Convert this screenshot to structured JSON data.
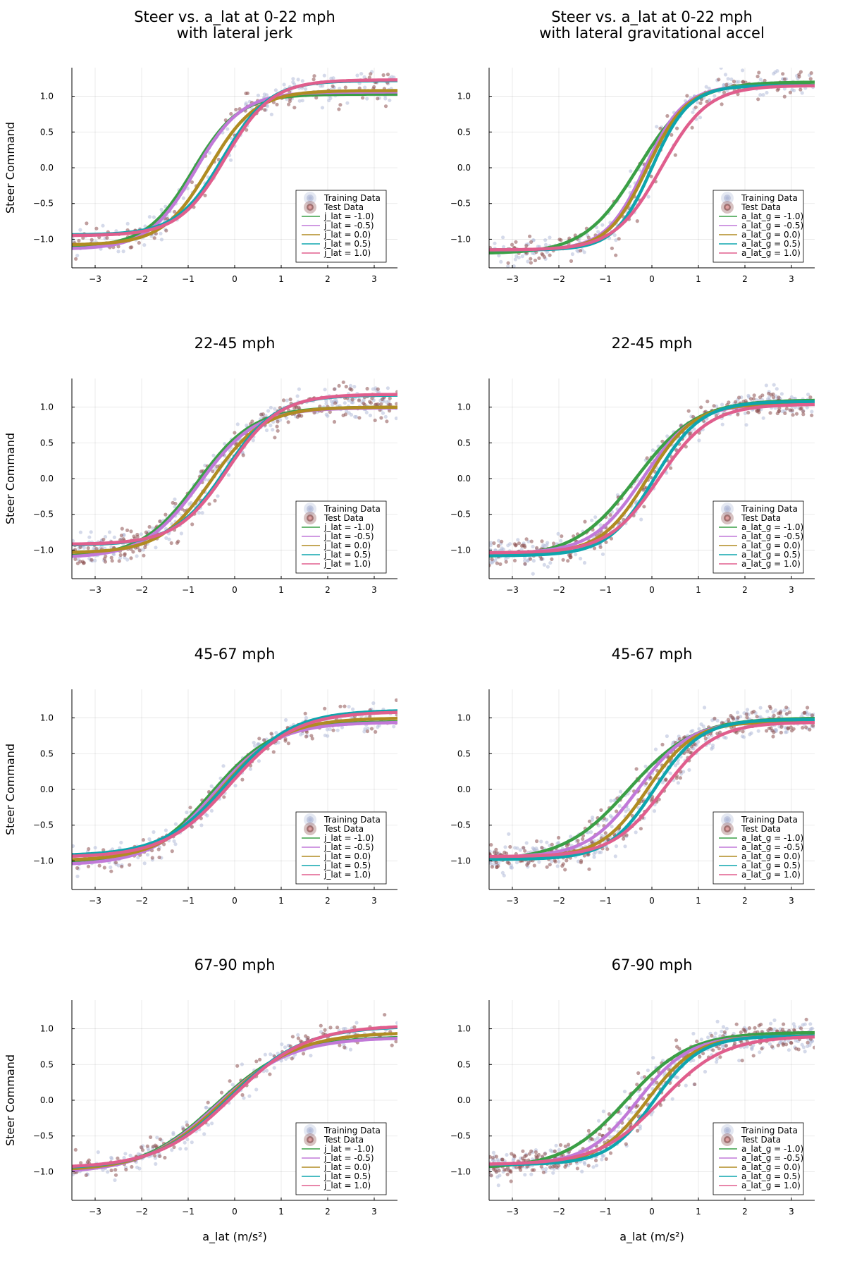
{
  "figure": {
    "ylabel": "Steer Command",
    "xlabel": "a_lat (m/s²)"
  },
  "chart_data": [
    {
      "type": "scatter",
      "title": "Steer vs. a_lat at 0-22 mph\nwith lateral jerk",
      "xlim": [
        -3.5,
        3.5
      ],
      "ylim": [
        -1.4,
        1.4
      ],
      "xticks": [
        -3,
        -2,
        -1,
        0,
        1,
        2,
        3
      ],
      "yticks": [
        -1.0,
        -0.5,
        0.0,
        0.5,
        1.0
      ],
      "ytick_labels": [
        "−1.0",
        "−0.5",
        "0.0",
        "0.5",
        "1.0"
      ],
      "xtick_labels": [
        "−3",
        "−2",
        "−1",
        "0",
        "1",
        "2",
        "3"
      ],
      "grid": true,
      "legend_position": "bottom-right",
      "scatter_series": [
        {
          "name": "Training Data",
          "color": "#b3bcd9",
          "approx_points": 180
        },
        {
          "name": "Test Data",
          "color": "#8c5050",
          "approx_points": 120
        }
      ],
      "series": [
        {
          "name": "j_lat = -1.0)",
          "color": "#3a9f46",
          "offset": -0.9,
          "amp": 1.07,
          "base": -0.04,
          "scale": 1.0
        },
        {
          "name": "j_lat = -0.5)",
          "color": "#c179d8",
          "offset": -0.85,
          "amp": 1.1,
          "base": -0.04,
          "scale": 1.0
        },
        {
          "name": "j_lat = 0.0)",
          "color": "#b08c22",
          "offset": -0.55,
          "amp": 1.08,
          "base": 0.0,
          "scale": 1.0
        },
        {
          "name": "j_lat = 0.5)",
          "color": "#0ea5ad",
          "offset": -0.25,
          "amp": 1.08,
          "base": 0.14,
          "scale": 1.0
        },
        {
          "name": "j_lat = 1.0)",
          "color": "#e05e8d",
          "offset": -0.2,
          "amp": 1.09,
          "base": 0.14,
          "scale": 1.0
        }
      ]
    },
    {
      "type": "scatter",
      "title": "Steer vs. a_lat at 0-22 mph\nwith lateral gravitational accel",
      "xlim": [
        -3.5,
        3.5
      ],
      "ylim": [
        -1.4,
        1.4
      ],
      "xticks": [
        -3,
        -2,
        -1,
        0,
        1,
        2,
        3
      ],
      "yticks": [
        -1.0,
        -0.5,
        0.0,
        0.5,
        1.0
      ],
      "ytick_labels": [
        "−1.0",
        "−0.5",
        "0.0",
        "0.5",
        "1.0"
      ],
      "xtick_labels": [
        "−3",
        "−2",
        "−1",
        "0",
        "1",
        "2",
        "3"
      ],
      "grid": true,
      "legend_position": "bottom-right",
      "scatter_series": [
        {
          "name": "Training Data",
          "color": "#b3bcd9",
          "approx_points": 180
        },
        {
          "name": "Test Data",
          "color": "#8c5050",
          "approx_points": 120
        }
      ],
      "series": [
        {
          "name": "a_lat_g = -1.0)",
          "color": "#3a9f46",
          "offset": -0.3,
          "amp": 1.2,
          "base": 0.0,
          "scale": 1.15
        },
        {
          "name": "a_lat_g = -0.5)",
          "color": "#c179d8",
          "offset": -0.15,
          "amp": 1.15,
          "base": 0.0,
          "scale": 0.85
        },
        {
          "name": "a_lat_g = 0.0)",
          "color": "#b08c22",
          "offset": -0.1,
          "amp": 1.15,
          "base": 0.0,
          "scale": 0.85
        },
        {
          "name": "a_lat_g = 0.5)",
          "color": "#0ea5ad",
          "offset": 0.0,
          "amp": 1.15,
          "base": 0.0,
          "scale": 0.8
        },
        {
          "name": "a_lat_g = 1.0)",
          "color": "#e05e8d",
          "offset": 0.2,
          "amp": 1.15,
          "base": 0.0,
          "scale": 1.0
        }
      ]
    },
    {
      "type": "scatter",
      "title": "22-45 mph",
      "xlim": [
        -3.5,
        3.5
      ],
      "ylim": [
        -1.4,
        1.4
      ],
      "xticks": [
        -3,
        -2,
        -1,
        0,
        1,
        2,
        3
      ],
      "yticks": [
        -1.0,
        -0.5,
        0.0,
        0.5,
        1.0
      ],
      "ytick_labels": [
        "−1.0",
        "−0.5",
        "0.0",
        "0.5",
        "1.0"
      ],
      "xtick_labels": [
        "−3",
        "−2",
        "−1",
        "0",
        "1",
        "2",
        "3"
      ],
      "grid": true,
      "legend_position": "bottom-right",
      "scatter_series": [
        {
          "name": "Training Data",
          "color": "#b3bcd9",
          "approx_points": 300
        },
        {
          "name": "Test Data",
          "color": "#8c5050",
          "approx_points": 220
        }
      ],
      "series": [
        {
          "name": "j_lat = -1.0)",
          "color": "#3a9f46",
          "offset": -0.8,
          "amp": 1.05,
          "base": -0.05,
          "scale": 1.2
        },
        {
          "name": "j_lat = -0.5)",
          "color": "#c179d8",
          "offset": -0.75,
          "amp": 1.05,
          "base": -0.06,
          "scale": 1.2
        },
        {
          "name": "j_lat = 0.0)",
          "color": "#b08c22",
          "offset": -0.5,
          "amp": 1.02,
          "base": -0.02,
          "scale": 1.1
        },
        {
          "name": "j_lat = 0.5)",
          "color": "#0ea5ad",
          "offset": -0.2,
          "amp": 1.05,
          "base": 0.12,
          "scale": 1.1
        },
        {
          "name": "j_lat = 1.0)",
          "color": "#e05e8d",
          "offset": -0.15,
          "amp": 1.05,
          "base": 0.13,
          "scale": 1.1
        }
      ]
    },
    {
      "type": "scatter",
      "title": "22-45 mph",
      "xlim": [
        -3.5,
        3.5
      ],
      "ylim": [
        -1.4,
        1.4
      ],
      "xticks": [
        -3,
        -2,
        -1,
        0,
        1,
        2,
        3
      ],
      "yticks": [
        -1.0,
        -0.5,
        0.0,
        0.5,
        1.0
      ],
      "ytick_labels": [
        "−1.0",
        "−0.5",
        "0.0",
        "0.5",
        "1.0"
      ],
      "xtick_labels": [
        "−3",
        "−2",
        "−1",
        "0",
        "1",
        "2",
        "3"
      ],
      "grid": true,
      "legend_position": "bottom-right",
      "scatter_series": [
        {
          "name": "Training Data",
          "color": "#b3bcd9",
          "approx_points": 300
        },
        {
          "name": "Test Data",
          "color": "#8c5050",
          "approx_points": 220
        }
      ],
      "series": [
        {
          "name": "a_lat_g = -1.0)",
          "color": "#3a9f46",
          "offset": -0.35,
          "amp": 1.1,
          "base": 0.0,
          "scale": 1.3
        },
        {
          "name": "a_lat_g = -0.5)",
          "color": "#c179d8",
          "offset": -0.2,
          "amp": 1.05,
          "base": 0.0,
          "scale": 1.1
        },
        {
          "name": "a_lat_g = 0.0)",
          "color": "#b08c22",
          "offset": -0.1,
          "amp": 1.05,
          "base": 0.0,
          "scale": 1.0
        },
        {
          "name": "a_lat_g = 0.5)",
          "color": "#0ea5ad",
          "offset": 0.05,
          "amp": 1.08,
          "base": 0.0,
          "scale": 1.0
        },
        {
          "name": "a_lat_g = 1.0)",
          "color": "#e05e8d",
          "offset": 0.15,
          "amp": 1.04,
          "base": 0.0,
          "scale": 1.1
        }
      ]
    },
    {
      "type": "scatter",
      "title": "45-67 mph",
      "xlim": [
        -3.5,
        3.5
      ],
      "ylim": [
        -1.4,
        1.4
      ],
      "xticks": [
        -3,
        -2,
        -1,
        0,
        1,
        2,
        3
      ],
      "yticks": [
        -1.0,
        -0.5,
        0.0,
        0.5,
        1.0
      ],
      "ytick_labels": [
        "−1.0",
        "−0.5",
        "0.0",
        "0.5",
        "1.0"
      ],
      "xtick_labels": [
        "−3",
        "−2",
        "−1",
        "0",
        "1",
        "2",
        "3"
      ],
      "grid": true,
      "legend_position": "bottom-right",
      "scatter_series": [
        {
          "name": "Training Data",
          "color": "#b3bcd9",
          "approx_points": 200
        },
        {
          "name": "Test Data",
          "color": "#8c5050",
          "approx_points": 140
        }
      ],
      "series": [
        {
          "name": "j_lat = -1.0)",
          "color": "#3a9f46",
          "offset": -0.5,
          "amp": 1.0,
          "base": -0.05,
          "scale": 1.35
        },
        {
          "name": "j_lat = -0.5)",
          "color": "#c179d8",
          "offset": -0.45,
          "amp": 1.0,
          "base": -0.06,
          "scale": 1.35
        },
        {
          "name": "j_lat = 0.0)",
          "color": "#b08c22",
          "offset": -0.3,
          "amp": 1.0,
          "base": 0.0,
          "scale": 1.35
        },
        {
          "name": "j_lat = 0.5)",
          "color": "#0ea5ad",
          "offset": -0.15,
          "amp": 1.02,
          "base": 0.09,
          "scale": 1.4
        },
        {
          "name": "j_lat = 1.0)",
          "color": "#e05e8d",
          "offset": -0.1,
          "amp": 1.02,
          "base": 0.07,
          "scale": 1.4
        }
      ]
    },
    {
      "type": "scatter",
      "title": "45-67 mph",
      "xlim": [
        -3.5,
        3.5
      ],
      "ylim": [
        -1.4,
        1.4
      ],
      "xticks": [
        -3,
        -2,
        -1,
        0,
        1,
        2,
        3
      ],
      "yticks": [
        -1.0,
        -0.5,
        0.0,
        0.5,
        1.0
      ],
      "ytick_labels": [
        "−1.0",
        "−0.5",
        "0.0",
        "0.5",
        "1.0"
      ],
      "xtick_labels": [
        "−3",
        "−2",
        "−1",
        "0",
        "1",
        "2",
        "3"
      ],
      "grid": true,
      "legend_position": "bottom-right",
      "scatter_series": [
        {
          "name": "Training Data",
          "color": "#b3bcd9",
          "approx_points": 360
        },
        {
          "name": "Test Data",
          "color": "#8c5050",
          "approx_points": 300
        }
      ],
      "series": [
        {
          "name": "a_lat_g = -1.0)",
          "color": "#3a9f46",
          "offset": -0.5,
          "amp": 1.0,
          "base": 0.0,
          "scale": 1.4
        },
        {
          "name": "a_lat_g = -0.5)",
          "color": "#c179d8",
          "offset": -0.3,
          "amp": 0.95,
          "base": 0.0,
          "scale": 1.1
        },
        {
          "name": "a_lat_g = 0.0)",
          "color": "#b08c22",
          "offset": -0.1,
          "amp": 0.95,
          "base": 0.0,
          "scale": 1.0
        },
        {
          "name": "a_lat_g = 0.5)",
          "color": "#0ea5ad",
          "offset": 0.05,
          "amp": 0.98,
          "base": 0.0,
          "scale": 1.0
        },
        {
          "name": "a_lat_g = 1.0)",
          "color": "#e05e8d",
          "offset": 0.25,
          "amp": 0.94,
          "base": 0.0,
          "scale": 1.1
        }
      ]
    },
    {
      "type": "scatter",
      "title": "67-90 mph",
      "xlim": [
        -3.5,
        3.5
      ],
      "ylim": [
        -1.4,
        1.4
      ],
      "xticks": [
        -3,
        -2,
        -1,
        0,
        1,
        2,
        3
      ],
      "yticks": [
        -1.0,
        -0.5,
        0.0,
        0.5,
        1.0
      ],
      "ytick_labels": [
        "−1.0",
        "−0.5",
        "0.0",
        "0.5",
        "1.0"
      ],
      "xtick_labels": [
        "−3",
        "−2",
        "−1",
        "0",
        "1",
        "2",
        "3"
      ],
      "grid": true,
      "legend_position": "bottom-right",
      "scatter_series": [
        {
          "name": "Training Data",
          "color": "#b3bcd9",
          "approx_points": 160
        },
        {
          "name": "Test Data",
          "color": "#8c5050",
          "approx_points": 120
        }
      ],
      "series": [
        {
          "name": "j_lat = -1.0)",
          "color": "#3a9f46",
          "offset": -0.4,
          "amp": 0.95,
          "base": -0.06,
          "scale": 1.6
        },
        {
          "name": "j_lat = -0.5)",
          "color": "#c179d8",
          "offset": -0.38,
          "amp": 0.95,
          "base": -0.07,
          "scale": 1.6
        },
        {
          "name": "j_lat = 0.0)",
          "color": "#b08c22",
          "offset": -0.25,
          "amp": 0.97,
          "base": -0.02,
          "scale": 1.6
        },
        {
          "name": "j_lat = 0.5)",
          "color": "#0ea5ad",
          "offset": -0.1,
          "amp": 1.0,
          "base": 0.04,
          "scale": 1.6
        },
        {
          "name": "j_lat = 1.0)",
          "color": "#e05e8d",
          "offset": -0.05,
          "amp": 1.0,
          "base": 0.05,
          "scale": 1.6
        }
      ]
    },
    {
      "type": "scatter",
      "title": "67-90 mph",
      "xlim": [
        -3.5,
        3.5
      ],
      "ylim": [
        -1.4,
        1.4
      ],
      "xticks": [
        -3,
        -2,
        -1,
        0,
        1,
        2,
        3
      ],
      "yticks": [
        -1.0,
        -0.5,
        0.0,
        0.5,
        1.0
      ],
      "ytick_labels": [
        "−1.0",
        "−0.5",
        "0.0",
        "0.5",
        "1.0"
      ],
      "xtick_labels": [
        "−3",
        "−2",
        "−1",
        "0",
        "1",
        "2",
        "3"
      ],
      "grid": true,
      "legend_position": "bottom-right",
      "scatter_series": [
        {
          "name": "Training Data",
          "color": "#b3bcd9",
          "approx_points": 340
        },
        {
          "name": "Test Data",
          "color": "#8c5050",
          "approx_points": 300
        }
      ],
      "series": [
        {
          "name": "a_lat_g = -1.0)",
          "color": "#3a9f46",
          "offset": -0.55,
          "amp": 0.95,
          "base": 0.0,
          "scale": 1.35
        },
        {
          "name": "a_lat_g = -0.5)",
          "color": "#c179d8",
          "offset": -0.3,
          "amp": 0.9,
          "base": 0.0,
          "scale": 1.1
        },
        {
          "name": "a_lat_g = 0.0)",
          "color": "#b08c22",
          "offset": -0.1,
          "amp": 0.9,
          "base": 0.0,
          "scale": 1.05
        },
        {
          "name": "a_lat_g = 0.5)",
          "color": "#0ea5ad",
          "offset": 0.05,
          "amp": 0.9,
          "base": 0.0,
          "scale": 1.0
        },
        {
          "name": "a_lat_g = 1.0)",
          "color": "#e05e8d",
          "offset": 0.2,
          "amp": 0.9,
          "base": 0.0,
          "scale": 1.35
        }
      ]
    }
  ]
}
